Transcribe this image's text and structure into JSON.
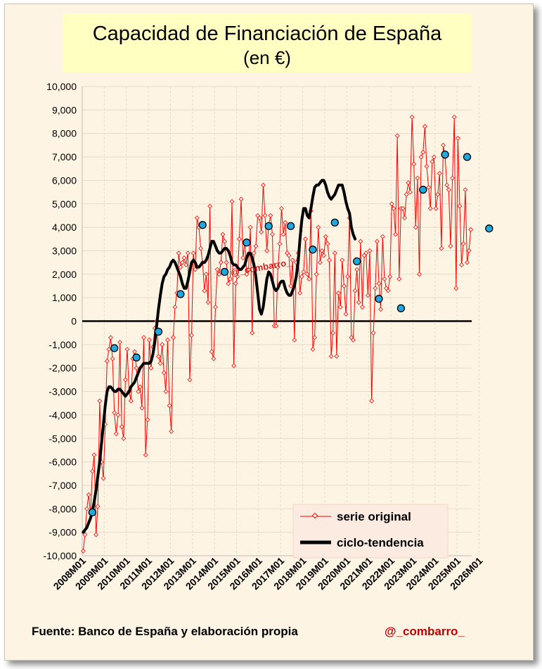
{
  "chart_data": {
    "type": "line",
    "title": "Capacidad  de Financiación  de España",
    "subtitle": "(en €)",
    "ylim": [
      -10000,
      10000
    ],
    "y_ticks": [
      "-10,000",
      "-9,000",
      "-8,000",
      "-7,000",
      "-6,000",
      "-5,000",
      "-4,000",
      "-3,000",
      "-2,000",
      "-1,000",
      "0",
      "1,000",
      "2,000",
      "3,000",
      "4,000",
      "5,000",
      "6,000",
      "7,000",
      "8,000",
      "9,000",
      "10,000"
    ],
    "x_tick_labels": [
      "2008M01",
      "2009M01",
      "2010M01",
      "2011M01",
      "2012M01",
      "2013M01",
      "2014M01",
      "2015M01",
      "2016M01",
      "2017M01",
      "2018M01",
      "2019M01",
      "2020M01",
      "2021M01",
      "2022M01",
      "2023M01",
      "2024M01",
      "2025M01",
      "2026M01"
    ],
    "grid": true,
    "legend_position": "bottom-right",
    "legend": {
      "original": "serie original",
      "trend": "ciclo-tendencia"
    },
    "colors": {
      "original": "#ff0000",
      "trend": "#000000",
      "highlight": "#22a8e0"
    },
    "watermark": "@_combarro_",
    "series_original": [
      -9800,
      -9100,
      -8000,
      -7400,
      -8200,
      -6400,
      -5700,
      -9100,
      -7900,
      -3400,
      -6000,
      -6700,
      -4400,
      -1700,
      -1200,
      -700,
      -1600,
      -3900,
      -4800,
      -4000,
      -900,
      -4500,
      -5000,
      -2500,
      -1200,
      -3000,
      -3400,
      -1600,
      -1300,
      -2000,
      -3000,
      -2800,
      -3700,
      -700,
      -5700,
      -4200,
      -800,
      -2000,
      -1100,
      -300,
      0,
      -1500,
      -1800,
      -1000,
      -2200,
      -3000,
      -800,
      -3600,
      -4700,
      -700,
      600,
      1200,
      2900,
      2300,
      2500,
      2700,
      2400,
      2900,
      -2500,
      -600,
      2900,
      2200,
      4400,
      4000,
      3100,
      2500,
      1300,
      2000,
      800,
      4900,
      -1300,
      -1600,
      600,
      2200,
      2000,
      2500,
      3700,
      3400,
      2500,
      1600,
      1800,
      5100,
      -1900,
      1600,
      1900,
      3500,
      5200,
      2700,
      3400,
      2000,
      2200,
      4000,
      -500,
      2900,
      3200,
      4500,
      4400,
      3800,
      5800,
      4500,
      3000,
      4100,
      4500,
      3700,
      -200,
      -200,
      2300,
      3300,
      4800,
      3700,
      4200,
      2900,
      2800,
      1500,
      2600,
      -800,
      2500,
      2900,
      1200,
      1900,
      2100,
      3500,
      2000,
      1800,
      4700,
      -1200,
      -700,
      2000,
      4000,
      2500,
      3000,
      2800,
      3600,
      3300,
      2600,
      -1500,
      -500,
      2900,
      -1500,
      1200,
      600,
      2600,
      1500,
      300,
      1900,
      4400,
      -700,
      -800,
      1300,
      2200,
      800,
      3400,
      600,
      2800,
      2900,
      1100,
      3000,
      -3400,
      -500,
      1400,
      3400,
      1600,
      500,
      3600,
      1800,
      1400,
      1300,
      1900,
      5000,
      4800,
      3700,
      7900,
      1800,
      4800,
      4800,
      4400,
      5400,
      5900,
      5500,
      8700,
      6700,
      4000,
      6100,
      2000,
      7000,
      7200,
      8300,
      6600,
      5700,
      4800,
      6800,
      7000,
      4800,
      5400,
      6300,
      3100,
      7500,
      7000,
      5800,
      5600,
      3200,
      6100,
      8700,
      1400,
      7800,
      4900,
      2400,
      3300,
      5600,
      2500,
      3000,
      3900
    ],
    "series_trend": [
      -9000,
      -8900,
      -8800,
      -8600,
      -8400,
      -8100,
      -7700,
      -7200,
      -6600,
      -6000,
      -5200,
      -4400,
      -3600,
      -3000,
      -2800,
      -2800,
      -2900,
      -3000,
      -3000,
      -2900,
      -2900,
      -3000,
      -3100,
      -3200,
      -3100,
      -3000,
      -2800,
      -2700,
      -2600,
      -2400,
      -2200,
      -2000,
      -1900,
      -1800,
      -1800,
      -1800,
      -1800,
      -1700,
      -1400,
      -900,
      -200,
      500,
      1100,
      1600,
      1900,
      2000,
      2200,
      2300,
      2500,
      2600,
      2500,
      2300,
      2100,
      1900,
      1600,
      1400,
      1400,
      1700,
      2100,
      2500,
      2600,
      2500,
      2300,
      2300,
      2400,
      2500,
      2500,
      2600,
      2800,
      3100,
      3400,
      3400,
      3200,
      3000,
      2900,
      2900,
      3000,
      3100,
      3100,
      3000,
      2800,
      2500,
      2400,
      2400,
      2300,
      2200,
      2200,
      2300,
      2400,
      2700,
      2900,
      2900,
      2700,
      2400,
      1900,
      1200,
      500,
      300,
      600,
      1200,
      1800,
      2100,
      2000,
      1700,
      1400,
      1300,
      1400,
      1600,
      1700,
      1700,
      1400,
      1200,
      1100,
      1100,
      1300,
      1500,
      1900,
      2500,
      3500,
      4300,
      4800,
      4800,
      4500,
      4400,
      4800,
      5300,
      5700,
      5800,
      5800,
      5900,
      6000,
      6000,
      5800,
      5500,
      5300,
      5200,
      5300,
      5400,
      5600,
      5800,
      5800,
      5800,
      5500,
      5100,
      4800,
      4600,
      4000,
      3700,
      3500
    ],
    "highlight_points": [
      {
        "x": 5,
        "y": -8150
      },
      {
        "x": 17,
        "y": -1150
      },
      {
        "x": 29,
        "y": -1550
      },
      {
        "x": 41,
        "y": -450
      },
      {
        "x": 53,
        "y": 1150
      },
      {
        "x": 65,
        "y": 4100
      },
      {
        "x": 77,
        "y": 2100
      },
      {
        "x": 89,
        "y": 3350
      },
      {
        "x": 101,
        "y": 4050
      },
      {
        "x": 113,
        "y": 4050
      },
      {
        "x": 125,
        "y": 3050
      },
      {
        "x": 137,
        "y": 4200
      },
      {
        "x": 149,
        "y": 2550
      },
      {
        "x": 161,
        "y": 950
      },
      {
        "x": 173,
        "y": 550
      },
      {
        "x": 185,
        "y": 5600
      },
      {
        "x": 197,
        "y": 7100
      },
      {
        "x": 209,
        "y": 7000
      },
      {
        "x": 221,
        "y": 3950
      }
    ]
  },
  "footer": {
    "source": "Fuente: Banco de España  y elaboración propia",
    "handle": "@_combarro_"
  }
}
